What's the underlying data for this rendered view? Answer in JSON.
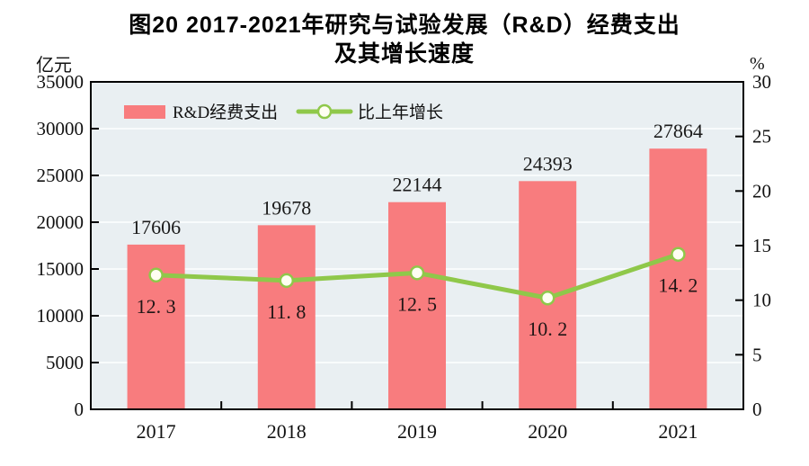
{
  "title": {
    "line1": "图20  2017-2021年研究与试验发展（R&D）经费支出",
    "line2": "及其增长速度"
  },
  "chart_data": {
    "type": "bar",
    "categories": [
      "2017",
      "2018",
      "2019",
      "2020",
      "2021"
    ],
    "series": [
      {
        "name": "R&D经费支出",
        "type": "bar",
        "axis": "left",
        "values": [
          17606,
          19678,
          22144,
          24393,
          27864
        ],
        "labels": [
          "17606",
          "19678",
          "22144",
          "24393",
          "27864"
        ]
      },
      {
        "name": "比上年增长",
        "type": "line",
        "axis": "right",
        "values": [
          12.3,
          11.8,
          12.5,
          10.2,
          14.2
        ],
        "labels": [
          "12. 3",
          "11. 8",
          "12. 5",
          "10. 2",
          "14. 2"
        ]
      }
    ],
    "left_axis": {
      "label": "亿元",
      "range": [
        0,
        35000
      ],
      "tick_step": 5000,
      "tick_labels": [
        "0",
        "5000",
        "10000",
        "15000",
        "20000",
        "25000",
        "30000",
        "35000"
      ]
    },
    "right_axis": {
      "label": "%",
      "range": [
        0,
        30
      ],
      "tick_step": 5,
      "tick_labels": [
        "0",
        "5",
        "10",
        "15",
        "20",
        "25",
        "30"
      ]
    },
    "grid": true,
    "legend_position": "top-left-inside"
  },
  "colors": {
    "bar": "#F87C7E",
    "line": "#8FC84A",
    "marker_fill": "#FFFEF2",
    "plot_bg": "#E9EFF2",
    "grid": "#F8FBFC",
    "axis": "#000000",
    "text": "#111111",
    "bar_label": "#1A1A1A",
    "pct_label": "#201616"
  }
}
